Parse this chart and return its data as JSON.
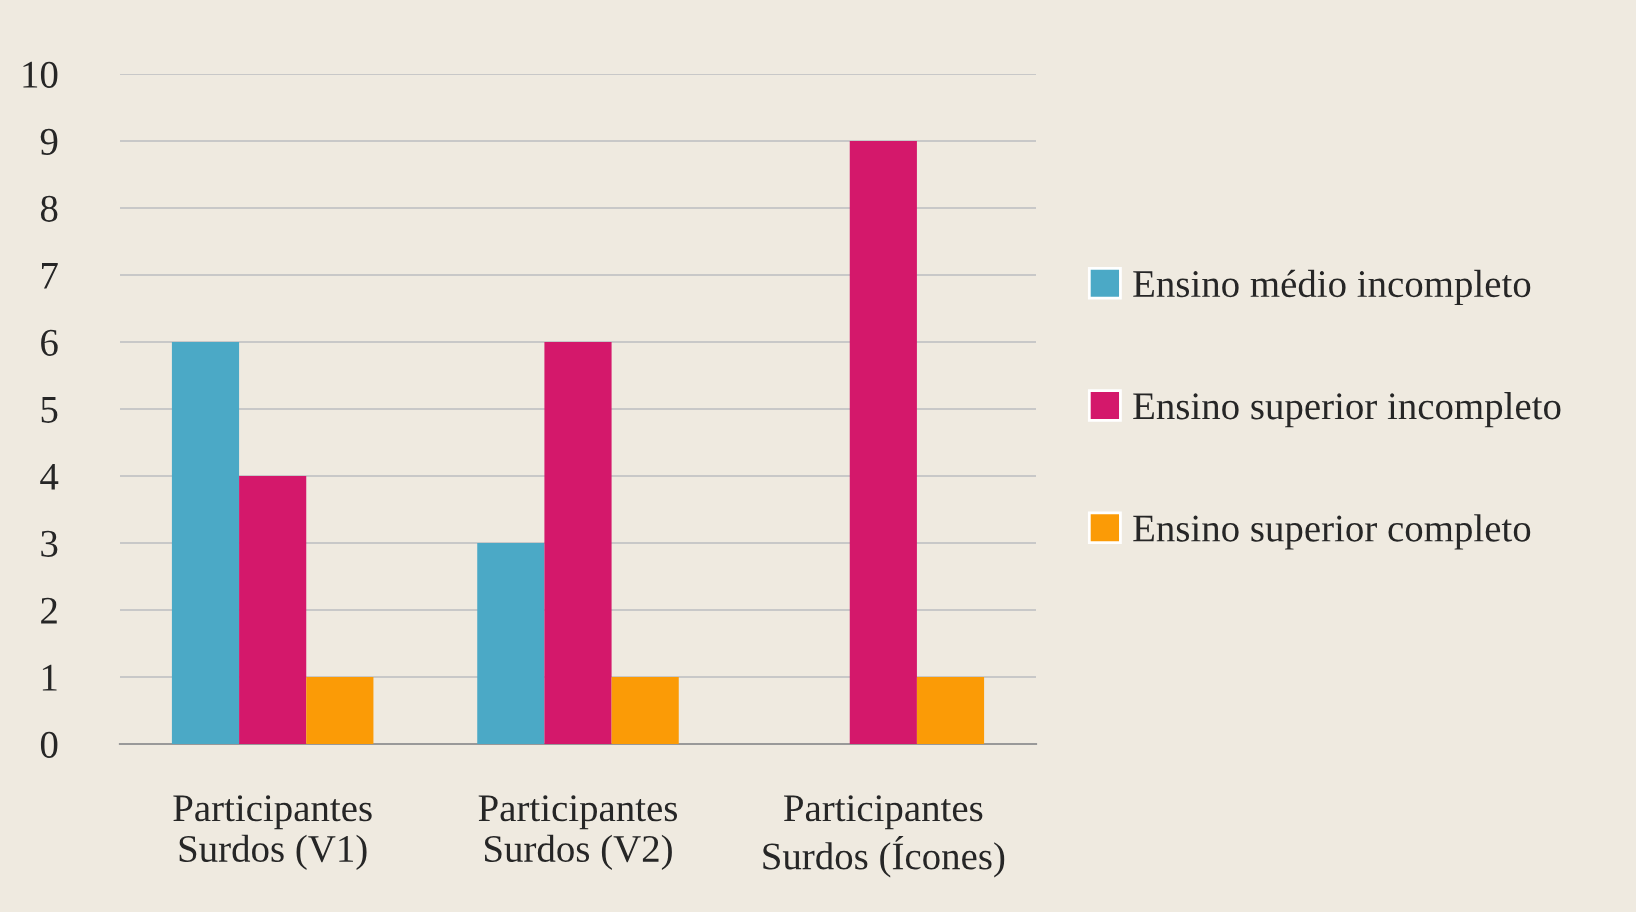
{
  "chart_data": {
    "type": "bar",
    "categories": [
      "Participantes\nSurdos (V1)",
      "Participantes\nSurdos (V2)",
      "Participantes\nSurdos (Ícones)"
    ],
    "series": [
      {
        "name": "Ensino médio incompleto",
        "color": "#4ba9c6",
        "values": [
          6,
          3,
          null
        ]
      },
      {
        "name": "Ensino superior incompleto",
        "color": "#d4186b",
        "values": [
          4,
          6,
          9
        ]
      },
      {
        "name": "Ensino superior completo",
        "color": "#fb9b06",
        "values": [
          1,
          1,
          1
        ]
      }
    ],
    "ylim": [
      0,
      10
    ],
    "yticks": [
      0,
      1,
      2,
      3,
      4,
      5,
      6,
      7,
      8,
      9,
      10
    ],
    "grid": "y",
    "legend": "right"
  }
}
